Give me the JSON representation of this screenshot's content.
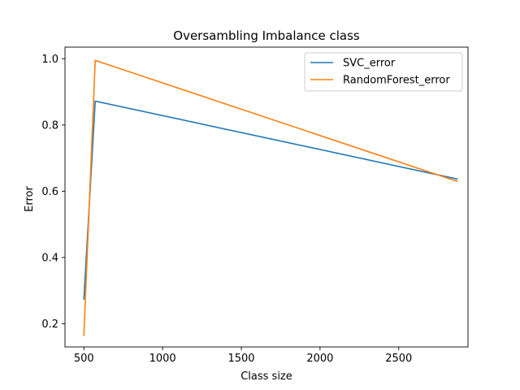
{
  "chart_data": {
    "type": "line",
    "title": "Oversambling Imbalance class",
    "xlabel": "Class size",
    "ylabel": "Error",
    "xlim": [
      380,
      2940
    ],
    "ylim": [
      0.13,
      1.035
    ],
    "xticks": [
      500,
      1000,
      1500,
      2000,
      2500
    ],
    "yticks": [
      0.2,
      0.4,
      0.6,
      0.8,
      1.0
    ],
    "xtick_labels": [
      "500",
      "1000",
      "1500",
      "2000",
      "2500"
    ],
    "ytick_labels": [
      "0.2",
      "0.4",
      "0.6",
      "0.8",
      "1.0"
    ],
    "grid": false,
    "legend_position": "top-right",
    "series": [
      {
        "name": "SVC_error",
        "color": "#1f77b4",
        "x": [
          500,
          572,
          2870
        ],
        "y": [
          0.275,
          0.872,
          0.637
        ]
      },
      {
        "name": "RandomForest_error",
        "color": "#ff7f0e",
        "x": [
          500,
          572,
          2870
        ],
        "y": [
          0.165,
          0.995,
          0.63
        ]
      }
    ]
  }
}
